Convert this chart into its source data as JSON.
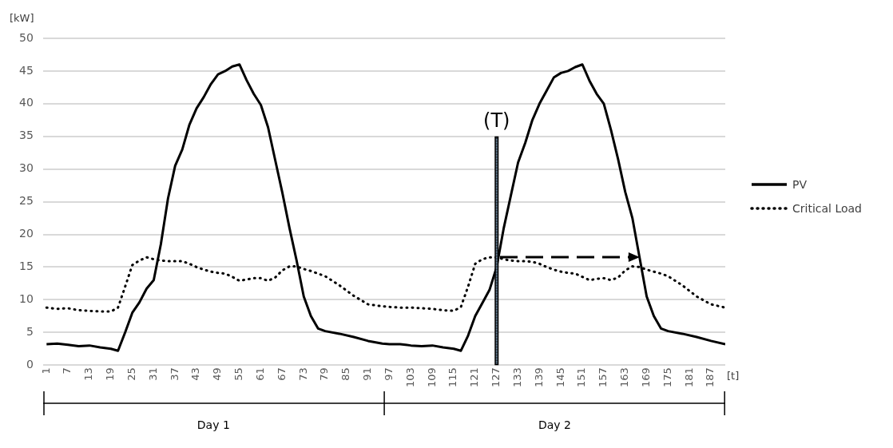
{
  "chart_data": {
    "type": "line",
    "ylabel": "[kW]",
    "xlabel": "[t]",
    "x": [
      1,
      4,
      7,
      10,
      13,
      16,
      19,
      21,
      23,
      25,
      27,
      29,
      31,
      33,
      35,
      37,
      39,
      41,
      43,
      45,
      47,
      49,
      51,
      53,
      55,
      57,
      59,
      61,
      63,
      65,
      67,
      69,
      71,
      73,
      75,
      77,
      79,
      83,
      87,
      91,
      95,
      97,
      100,
      103,
      106,
      109,
      112,
      115,
      117,
      119,
      121,
      123,
      125,
      127,
      129,
      131,
      133,
      135,
      137,
      139,
      141,
      143,
      145,
      147,
      149,
      151,
      153,
      155,
      157,
      159,
      161,
      163,
      165,
      167,
      169,
      171,
      173,
      175,
      179,
      183,
      187,
      191
    ],
    "series": [
      {
        "name": "PV",
        "color": "#000000",
        "line_style": "solid",
        "values": [
          3.2,
          3.3,
          3.1,
          2.9,
          3.0,
          2.7,
          2.5,
          2.2,
          5,
          8,
          9.6,
          11.7,
          13,
          18.5,
          25.5,
          30.5,
          33,
          36.8,
          39.3,
          41,
          43,
          44.5,
          45,
          45.7,
          46,
          43.6,
          41.5,
          39.8,
          36.4,
          31.4,
          26.4,
          21,
          16,
          10.5,
          7.5,
          5.6,
          5.2,
          4.8,
          4.3,
          3.7,
          3.3,
          3.2,
          3.2,
          3.0,
          2.9,
          3.0,
          2.7,
          2.5,
          2.2,
          4.5,
          7.5,
          9.5,
          11.5,
          15,
          21,
          26,
          31,
          34,
          37.5,
          40,
          42,
          44,
          44.7,
          45,
          45.6,
          46,
          43.5,
          41.5,
          40,
          36,
          31.5,
          26.5,
          22.5,
          16.5,
          10.5,
          7.5,
          5.6,
          5.2,
          4.8,
          4.3,
          3.7,
          3.2
        ]
      },
      {
        "name": "Critical Load",
        "color": "#000000",
        "line_style": "dotted",
        "values": [
          8.8,
          8.6,
          8.7,
          8.4,
          8.3,
          8.2,
          8.2,
          8.8,
          12,
          15.3,
          16,
          16.5,
          16.2,
          16,
          15.9,
          15.9,
          15.9,
          15.5,
          15,
          14.6,
          14.3,
          14.1,
          14,
          13.5,
          12.9,
          13.1,
          13.3,
          13.3,
          12.9,
          13.4,
          14.5,
          15.1,
          15.1,
          14.7,
          14.4,
          14,
          13.6,
          12.2,
          10.6,
          9.3,
          9.0,
          8.9,
          8.8,
          8.8,
          8.7,
          8.6,
          8.4,
          8.3,
          8.9,
          12,
          15.5,
          16.2,
          16.5,
          16.5,
          16.2,
          16,
          15.9,
          15.9,
          15.8,
          15.5,
          15,
          14.6,
          14.3,
          14.1,
          14,
          13.5,
          13,
          13.2,
          13.3,
          13,
          13.4,
          14.5,
          15.1,
          15,
          14.6,
          14.3,
          14,
          13.6,
          12.2,
          10.5,
          9.3,
          8.8
        ]
      }
    ],
    "xlim": [
      0,
      191
    ],
    "xticks": [
      1,
      7,
      13,
      19,
      25,
      31,
      37,
      43,
      49,
      55,
      61,
      67,
      73,
      79,
      85,
      91,
      97,
      103,
      109,
      115,
      121,
      127,
      133,
      139,
      145,
      151,
      157,
      163,
      169,
      175,
      181,
      187
    ],
    "ylim": [
      0,
      50
    ],
    "yticks": [
      0,
      5,
      10,
      15,
      20,
      25,
      30,
      35,
      40,
      45,
      50
    ],
    "grid": "y",
    "legend": "right",
    "marker": "none",
    "ref_lines": [
      {
        "axis": "x",
        "value": 127,
        "label": "(T)"
      }
    ],
    "annotations": [
      "Day 1",
      "Day 2"
    ]
  }
}
